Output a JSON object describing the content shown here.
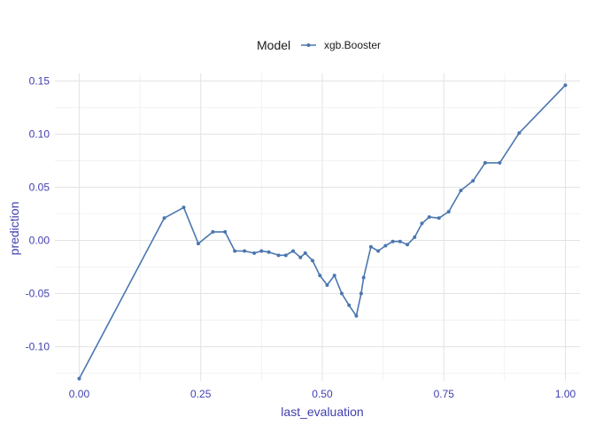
{
  "chart_data": {
    "type": "line",
    "title": "",
    "xlabel": "last_evaluation",
    "ylabel": "prediction",
    "xlim": [
      -0.05,
      1.03
    ],
    "ylim": [
      -0.132,
      0.157
    ],
    "x_ticks": [
      0.0,
      0.25,
      0.5,
      0.75,
      1.0
    ],
    "x_tick_labels": [
      "0.00",
      "0.25",
      "0.50",
      "0.75",
      "1.00"
    ],
    "y_ticks": [
      -0.1,
      -0.05,
      0.0,
      0.05,
      0.1,
      0.15
    ],
    "y_tick_labels": [
      "-0.10",
      "-0.05",
      "0.00",
      "0.05",
      "0.10",
      "0.15"
    ],
    "grid": true,
    "legend": {
      "title": "Model",
      "position": "top"
    },
    "series": [
      {
        "name": "xgb.Booster",
        "color": "#4a76b0",
        "points": [
          [
            0.0,
            -0.13
          ],
          [
            0.175,
            0.021
          ],
          [
            0.215,
            0.031
          ],
          [
            0.245,
            -0.003
          ],
          [
            0.275,
            0.008
          ],
          [
            0.3,
            0.008
          ],
          [
            0.32,
            -0.01
          ],
          [
            0.34,
            -0.01
          ],
          [
            0.36,
            -0.012
          ],
          [
            0.375,
            -0.01
          ],
          [
            0.39,
            -0.011
          ],
          [
            0.41,
            -0.014
          ],
          [
            0.425,
            -0.014
          ],
          [
            0.44,
            -0.01
          ],
          [
            0.455,
            -0.016
          ],
          [
            0.465,
            -0.012
          ],
          [
            0.48,
            -0.019
          ],
          [
            0.495,
            -0.033
          ],
          [
            0.51,
            -0.042
          ],
          [
            0.525,
            -0.033
          ],
          [
            0.54,
            -0.05
          ],
          [
            0.555,
            -0.061
          ],
          [
            0.57,
            -0.071
          ],
          [
            0.58,
            -0.05
          ],
          [
            0.585,
            -0.035
          ],
          [
            0.6,
            -0.006
          ],
          [
            0.615,
            -0.01
          ],
          [
            0.63,
            -0.005
          ],
          [
            0.645,
            -0.001
          ],
          [
            0.66,
            -0.001
          ],
          [
            0.675,
            -0.004
          ],
          [
            0.69,
            0.003
          ],
          [
            0.705,
            0.016
          ],
          [
            0.72,
            0.022
          ],
          [
            0.74,
            0.021
          ],
          [
            0.76,
            0.027
          ],
          [
            0.785,
            0.047
          ],
          [
            0.81,
            0.056
          ],
          [
            0.835,
            0.073
          ],
          [
            0.865,
            0.073
          ],
          [
            0.905,
            0.101
          ],
          [
            1.0,
            0.146
          ]
        ]
      }
    ]
  }
}
